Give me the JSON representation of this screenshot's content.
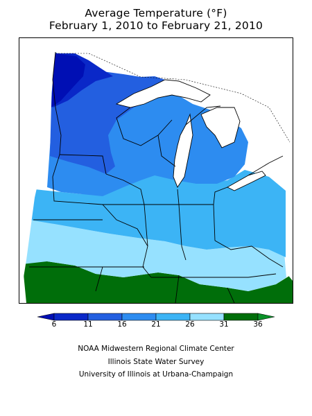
{
  "title": {
    "line1": "Average Temperature (°F)",
    "line2": "February 1, 2010 to February 21, 2010"
  },
  "legend": {
    "ticks": [
      "6",
      "11",
      "16",
      "21",
      "26",
      "31",
      "36"
    ],
    "colors": [
      "#000fb4",
      "#0a28c8",
      "#235fe0",
      "#2d8cf0",
      "#3cb4f5",
      "#96e1ff",
      "#006e0a",
      "#0a9128"
    ]
  },
  "credits": {
    "line1": "NOAA Midwestern Regional Climate Center",
    "line2": "Illinois State Water Survey",
    "line3": "University of Illinois at Urbana-Champaign"
  }
}
